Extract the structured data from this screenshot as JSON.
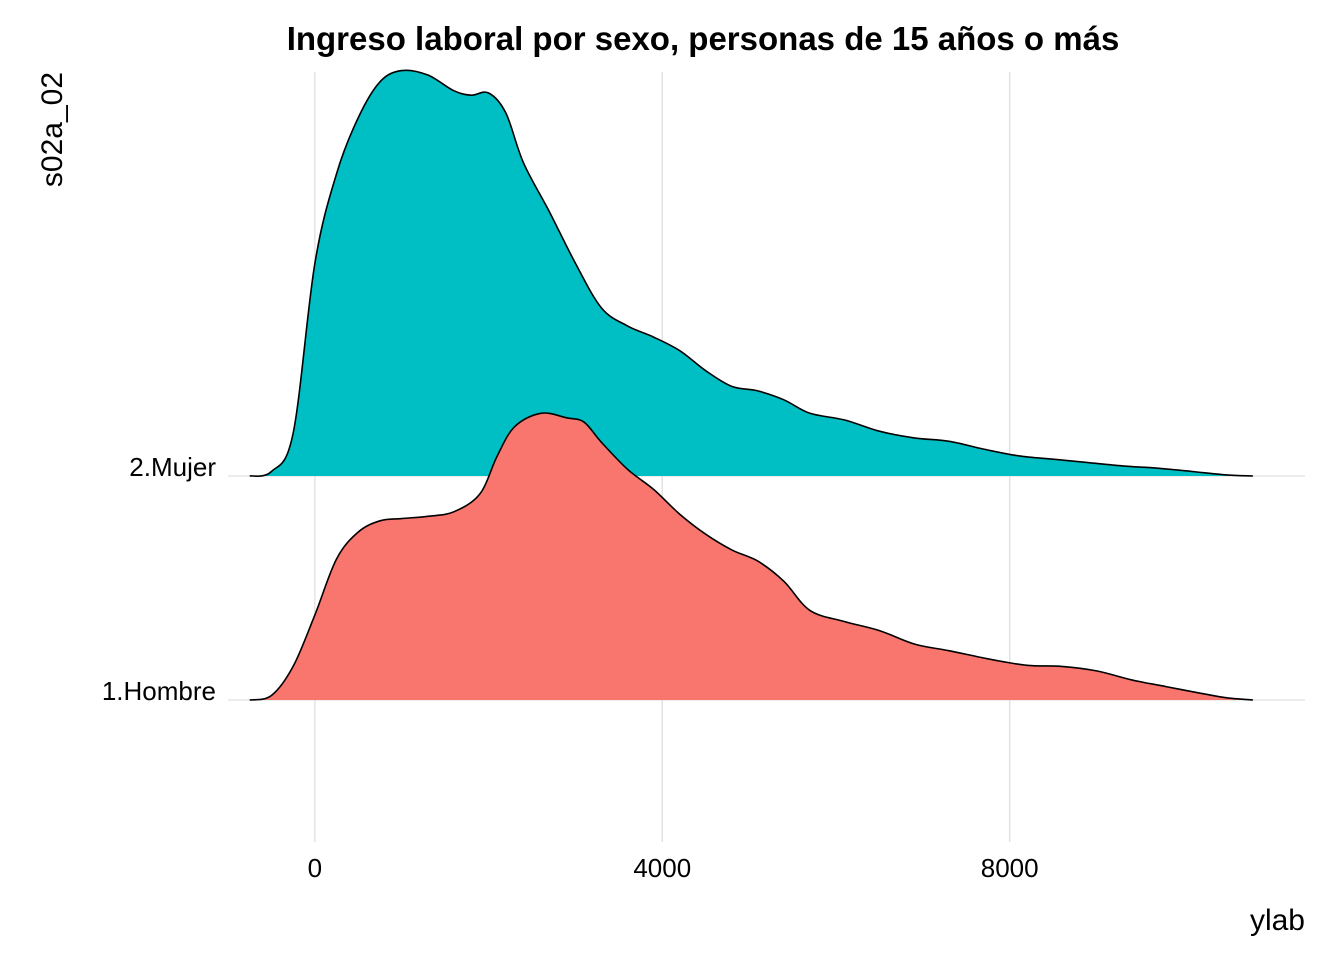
{
  "chart_data": {
    "type": "area",
    "subtype": "ridgeline",
    "title": "Ingreso laboral por sexo, personas de 15 años o más",
    "xlabel": "ylab",
    "ylabel": "s02a_02",
    "xlim": [
      -1000,
      11400
    ],
    "xticks": [
      0,
      4000,
      8000
    ],
    "xtick_labels": [
      "0",
      "4000",
      "8000"
    ],
    "grid": "vertical major lines only",
    "legend": "none",
    "colors": {
      "outline": "#000000",
      "grid": "#e0e0e0"
    },
    "series": [
      {
        "name": "1.Hombre",
        "color": "#F8766D",
        "relative_height": [
          [
            -750,
            0.0
          ],
          [
            -500,
            0.02
          ],
          [
            -250,
            0.15
          ],
          [
            0,
            0.38
          ],
          [
            250,
            0.63
          ],
          [
            500,
            0.75
          ],
          [
            750,
            0.8
          ],
          [
            1000,
            0.81
          ],
          [
            1300,
            0.82
          ],
          [
            1600,
            0.84
          ],
          [
            1900,
            0.92
          ],
          [
            2100,
            1.09
          ],
          [
            2300,
            1.22
          ],
          [
            2600,
            1.28
          ],
          [
            2900,
            1.26
          ],
          [
            3100,
            1.24
          ],
          [
            3300,
            1.15
          ],
          [
            3600,
            1.03
          ],
          [
            3900,
            0.94
          ],
          [
            4200,
            0.83
          ],
          [
            4500,
            0.74
          ],
          [
            4800,
            0.67
          ],
          [
            5100,
            0.62
          ],
          [
            5400,
            0.53
          ],
          [
            5700,
            0.4
          ],
          [
            6100,
            0.35
          ],
          [
            6500,
            0.31
          ],
          [
            6900,
            0.25
          ],
          [
            7300,
            0.22
          ],
          [
            7800,
            0.18
          ],
          [
            8200,
            0.155
          ],
          [
            8600,
            0.15
          ],
          [
            9000,
            0.13
          ],
          [
            9400,
            0.09
          ],
          [
            9800,
            0.06
          ],
          [
            10200,
            0.03
          ],
          [
            10500,
            0.01
          ],
          [
            10800,
            0.0
          ]
        ]
      },
      {
        "name": "2.Mujer",
        "color": "#00BFC4",
        "relative_height": [
          [
            -750,
            0.0
          ],
          [
            -500,
            0.02
          ],
          [
            -250,
            0.19
          ],
          [
            0,
            0.95
          ],
          [
            250,
            1.35
          ],
          [
            500,
            1.6
          ],
          [
            750,
            1.76
          ],
          [
            1000,
            1.81
          ],
          [
            1300,
            1.79
          ],
          [
            1600,
            1.72
          ],
          [
            1800,
            1.7
          ],
          [
            2000,
            1.71
          ],
          [
            2200,
            1.62
          ],
          [
            2400,
            1.4
          ],
          [
            2700,
            1.18
          ],
          [
            3000,
            0.95
          ],
          [
            3300,
            0.75
          ],
          [
            3600,
            0.67
          ],
          [
            3900,
            0.62
          ],
          [
            4200,
            0.56
          ],
          [
            4500,
            0.47
          ],
          [
            4800,
            0.4
          ],
          [
            5100,
            0.38
          ],
          [
            5400,
            0.34
          ],
          [
            5700,
            0.28
          ],
          [
            6100,
            0.25
          ],
          [
            6500,
            0.2
          ],
          [
            6900,
            0.17
          ],
          [
            7300,
            0.155
          ],
          [
            7700,
            0.12
          ],
          [
            8100,
            0.09
          ],
          [
            8500,
            0.075
          ],
          [
            8900,
            0.06
          ],
          [
            9300,
            0.045
          ],
          [
            9700,
            0.035
          ],
          [
            10100,
            0.02
          ],
          [
            10500,
            0.005
          ],
          [
            10800,
            0.0
          ]
        ]
      }
    ]
  }
}
